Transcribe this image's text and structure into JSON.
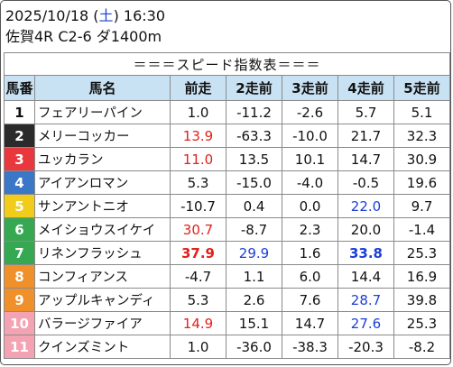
{
  "header": {
    "date": "2025/10/18 (",
    "weekday": "土",
    "time_suffix": ") 16:30",
    "race": "佐賀4R C2-6 ダ1400m"
  },
  "table": {
    "title": "＝＝＝スピード指数表＝＝＝",
    "columns": [
      "馬番",
      "馬名",
      "前走",
      "2走前",
      "3走前",
      "4走前",
      "5走前"
    ],
    "colors": {
      "red": "#e0201b",
      "blue": "#1a3fd6",
      "header_bg": "#c9e2f3"
    },
    "rows": [
      {
        "num": "1",
        "bg": "#ffffff",
        "fg": "#111111",
        "name": "フェアリーパイン",
        "cells": [
          {
            "v": "1.0"
          },
          {
            "v": "-11.2"
          },
          {
            "v": "-2.6"
          },
          {
            "v": "5.7"
          },
          {
            "v": "5.1"
          }
        ]
      },
      {
        "num": "2",
        "bg": "#2b2b2b",
        "fg": "#ffffff",
        "name": "メリーコッカー",
        "cells": [
          {
            "v": "13.9",
            "c": "red"
          },
          {
            "v": "-63.3"
          },
          {
            "v": "-10.0"
          },
          {
            "v": "21.7"
          },
          {
            "v": "32.3"
          }
        ]
      },
      {
        "num": "3",
        "bg": "#e8383d",
        "fg": "#ffffff",
        "name": "ユッカラン",
        "cells": [
          {
            "v": "11.0",
            "c": "red"
          },
          {
            "v": "13.5"
          },
          {
            "v": "10.1"
          },
          {
            "v": "14.7"
          },
          {
            "v": "30.9"
          }
        ]
      },
      {
        "num": "4",
        "bg": "#3a78c7",
        "fg": "#ffffff",
        "name": "アイアンロマン",
        "cells": [
          {
            "v": "5.3"
          },
          {
            "v": "-15.0"
          },
          {
            "v": "-4.0"
          },
          {
            "v": "-0.5"
          },
          {
            "v": "19.6"
          }
        ]
      },
      {
        "num": "5",
        "bg": "#f2cc1a",
        "fg": "#ffffff",
        "name": "サンアントニオ",
        "cells": [
          {
            "v": "-10.7"
          },
          {
            "v": "0.4"
          },
          {
            "v": "0.0"
          },
          {
            "v": "22.0",
            "c": "blue"
          },
          {
            "v": "9.7"
          }
        ]
      },
      {
        "num": "6",
        "bg": "#36a852",
        "fg": "#ffffff",
        "name": "メイショウスイケイ",
        "cells": [
          {
            "v": "30.7",
            "c": "red"
          },
          {
            "v": "-8.7"
          },
          {
            "v": "2.3"
          },
          {
            "v": "20.0"
          },
          {
            "v": "-1.4"
          }
        ]
      },
      {
        "num": "7",
        "bg": "#36a852",
        "fg": "#ffffff",
        "name": "リネンフラッシュ",
        "cells": [
          {
            "v": "37.9",
            "c": "red",
            "b": true
          },
          {
            "v": "29.9",
            "c": "blue"
          },
          {
            "v": "1.6"
          },
          {
            "v": "33.8",
            "c": "blue",
            "b": true
          },
          {
            "v": "25.3"
          }
        ]
      },
      {
        "num": "8",
        "bg": "#f0902a",
        "fg": "#ffffff",
        "name": "コンフィアンス",
        "cells": [
          {
            "v": "-4.7"
          },
          {
            "v": "1.1"
          },
          {
            "v": "6.0"
          },
          {
            "v": "14.4"
          },
          {
            "v": "16.9"
          }
        ]
      },
      {
        "num": "9",
        "bg": "#f0902a",
        "fg": "#ffffff",
        "name": "アップルキャンディ",
        "cells": [
          {
            "v": "5.3"
          },
          {
            "v": "2.6"
          },
          {
            "v": "7.6"
          },
          {
            "v": "28.7",
            "c": "blue"
          },
          {
            "v": "39.8"
          }
        ]
      },
      {
        "num": "10",
        "bg": "#f4a3b3",
        "fg": "#ffffff",
        "name": "バラージファイア",
        "cells": [
          {
            "v": "14.9",
            "c": "red"
          },
          {
            "v": "15.1"
          },
          {
            "v": "14.7"
          },
          {
            "v": "27.6",
            "c": "blue"
          },
          {
            "v": "25.3"
          }
        ]
      },
      {
        "num": "11",
        "bg": "#f4a3b3",
        "fg": "#ffffff",
        "name": "クインズミント",
        "cells": [
          {
            "v": "1.0"
          },
          {
            "v": "-36.0"
          },
          {
            "v": "-38.3"
          },
          {
            "v": "-20.3"
          },
          {
            "v": "-8.2"
          }
        ]
      }
    ]
  }
}
